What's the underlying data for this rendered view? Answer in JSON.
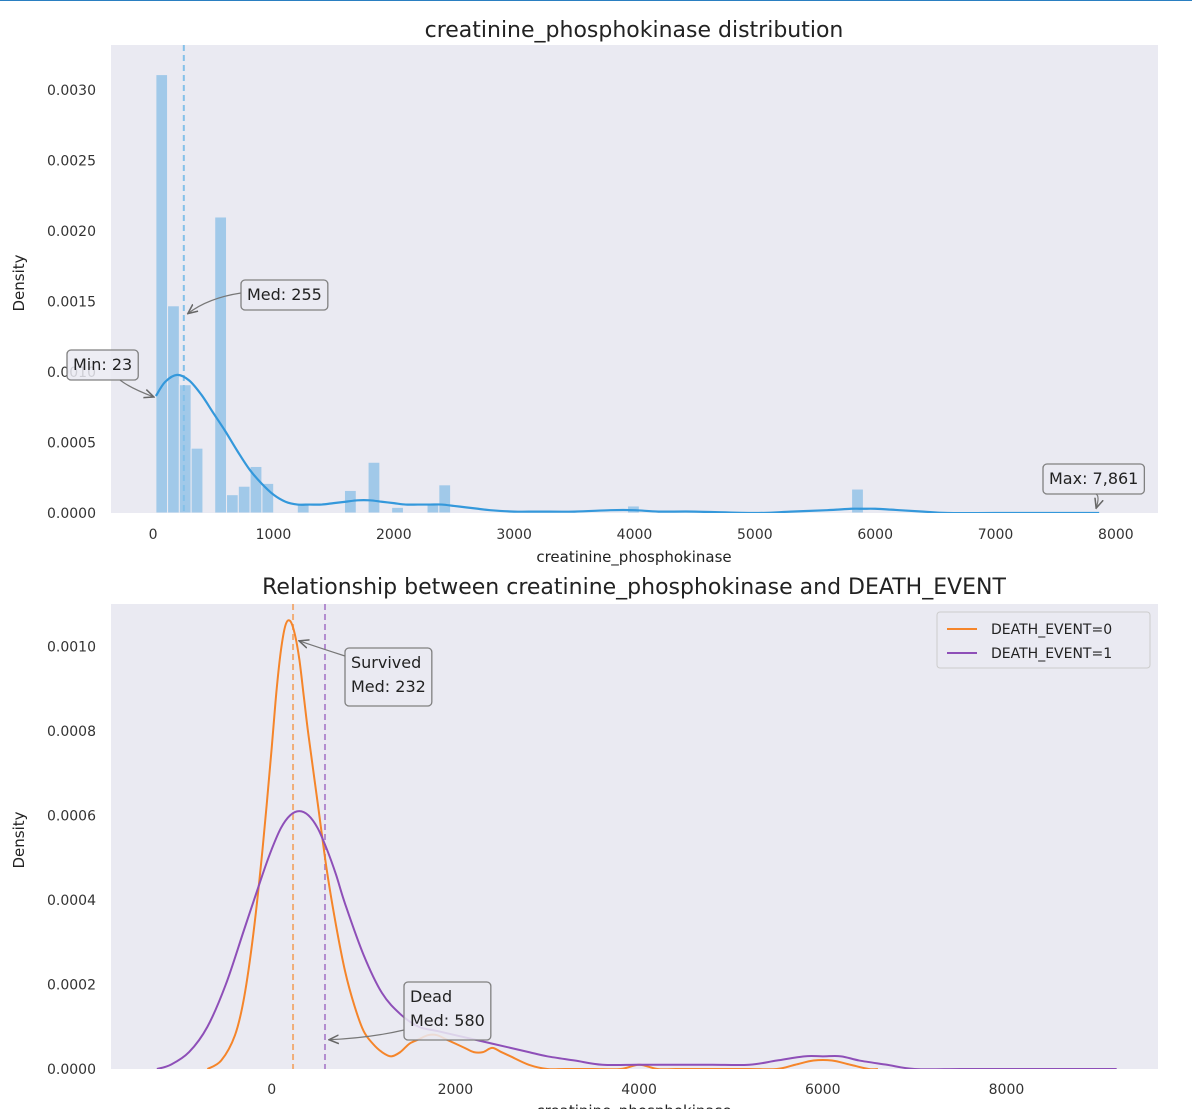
{
  "chart_data": [
    {
      "type": "histogram",
      "title": "creatinine_phosphokinase distribution",
      "xlabel": "creatinine_phosphokinase",
      "ylabel": "Density",
      "xlim": [
        -350,
        8350
      ],
      "ylim": [
        0,
        0.00332
      ],
      "xticks": [
        0,
        1000,
        2000,
        3000,
        4000,
        5000,
        6000,
        7000,
        8000
      ],
      "yticks": [
        0.0,
        0.0005,
        0.001,
        0.0015,
        0.002,
        0.0025,
        0.003
      ],
      "ytick_labels": [
        "0.0000",
        "0.0005",
        "0.0010",
        "0.0015",
        "0.0020",
        "0.0025",
        "0.0030"
      ],
      "grid": false,
      "color": "#3498db",
      "bins": [
        {
          "x0": 23,
          "x1": 120,
          "density": 0.00311
        },
        {
          "x0": 120,
          "x1": 218,
          "density": 0.00147
        },
        {
          "x0": 218,
          "x1": 316,
          "density": 0.00091
        },
        {
          "x0": 316,
          "x1": 414,
          "density": 0.00046
        },
        {
          "x0": 414,
          "x1": 512,
          "density": 0.0
        },
        {
          "x0": 512,
          "x1": 610,
          "density": 0.0021
        },
        {
          "x0": 610,
          "x1": 708,
          "density": 0.00013
        },
        {
          "x0": 708,
          "x1": 806,
          "density": 0.00019
        },
        {
          "x0": 806,
          "x1": 904,
          "density": 0.00033
        },
        {
          "x0": 904,
          "x1": 1002,
          "density": 0.00021
        },
        {
          "x0": 1198,
          "x1": 1296,
          "density": 6e-05
        },
        {
          "x0": 1590,
          "x1": 1688,
          "density": 0.00016
        },
        {
          "x0": 1786,
          "x1": 1884,
          "density": 0.00036
        },
        {
          "x0": 1982,
          "x1": 2080,
          "density": 4e-05
        },
        {
          "x0": 2276,
          "x1": 2374,
          "density": 6e-05
        },
        {
          "x0": 2374,
          "x1": 2472,
          "density": 0.0002
        },
        {
          "x0": 3942,
          "x1": 4040,
          "density": 5e-05
        },
        {
          "x0": 5804,
          "x1": 5902,
          "density": 0.00017
        }
      ],
      "kde": {
        "x": [
          23,
          100,
          200,
          300,
          400,
          500,
          600,
          700,
          800,
          900,
          1000,
          1100,
          1200,
          1300,
          1400,
          1500,
          1600,
          1700,
          1800,
          1900,
          2000,
          2100,
          2200,
          2300,
          2400,
          2500,
          2600,
          2700,
          2800,
          3000,
          3200,
          3500,
          3800,
          4000,
          4200,
          4500,
          5000,
          5300,
          5600,
          5800,
          5900,
          6000,
          6200,
          6400,
          6600,
          7000,
          7500,
          7861
        ],
        "y": [
          0.00083,
          0.00093,
          0.00098,
          0.00094,
          0.00084,
          0.00071,
          0.00058,
          0.00044,
          0.00031,
          0.00021,
          0.00013,
          8e-05,
          6e-05,
          6e-05,
          6e-05,
          7e-05,
          8e-05,
          9e-05,
          9e-05,
          8e-05,
          7e-05,
          6e-05,
          6e-05,
          6e-05,
          6e-05,
          5e-05,
          4e-05,
          3e-05,
          2e-05,
          1e-05,
          1e-05,
          1e-05,
          2e-05,
          2e-05,
          1e-05,
          1e-05,
          0.0,
          1e-05,
          2e-05,
          3e-05,
          3e-05,
          3e-05,
          2e-05,
          1e-05,
          0.0,
          0.0,
          0.0,
          0.0
        ]
      },
      "median_line": {
        "x": 255,
        "color": "#85c1e9"
      },
      "annotations": [
        {
          "text": "Med: 255",
          "target_x": 255,
          "target_y": 0.0014
        },
        {
          "text": "Min: 23",
          "target_x": 23,
          "target_y": 0.00083
        },
        {
          "text": "Max: 7,861",
          "target_x": 7861,
          "target_y": 2e-05
        }
      ]
    },
    {
      "type": "line",
      "title": "Relationship between creatinine_phosphokinase and DEATH_EVENT",
      "xlabel": "creatinine_phosphokinase",
      "ylabel": "Density",
      "xlim": [
        -1750,
        9650
      ],
      "ylim": [
        0,
        0.0011
      ],
      "xticks": [
        0,
        2000,
        4000,
        6000,
        8000
      ],
      "yticks": [
        0.0,
        0.0002,
        0.0004,
        0.0006,
        0.0008,
        0.001
      ],
      "ytick_labels": [
        "0.0000",
        "0.0002",
        "0.0004",
        "0.0006",
        "0.0008",
        "0.0010"
      ],
      "grid": false,
      "legend": "top-right",
      "series": [
        {
          "name": "DEATH_EVENT=0",
          "color": "#f5852a",
          "median": 232,
          "x": [
            -700,
            -550,
            -400,
            -300,
            -200,
            -100,
            0,
            50,
            100,
            150,
            200,
            250,
            300,
            350,
            400,
            500,
            600,
            700,
            800,
            900,
            1000,
            1100,
            1200,
            1300,
            1400,
            1500,
            1600,
            1700,
            1800,
            1900,
            2000,
            2100,
            2200,
            2300,
            2400,
            2500,
            2600,
            2800,
            3000,
            3200,
            3500,
            3800,
            4000,
            4200,
            4400,
            4800,
            5200,
            5500,
            5700,
            5900,
            6100,
            6300,
            6500,
            6600
          ],
          "y": [
            0.0,
            2e-05,
            8e-05,
            0.00017,
            0.00032,
            0.00052,
            0.00076,
            0.00089,
            0.00099,
            0.00105,
            0.00106,
            0.00103,
            0.00097,
            0.00088,
            0.00079,
            0.00063,
            0.00047,
            0.00034,
            0.00023,
            0.00015,
            9e-05,
            6e-05,
            4e-05,
            3e-05,
            4e-05,
            6e-05,
            7e-05,
            8e-05,
            8e-05,
            7e-05,
            6e-05,
            5e-05,
            4e-05,
            4e-05,
            5e-05,
            4e-05,
            3e-05,
            1e-05,
            0.0,
            0.0,
            0.0,
            0.0,
            1e-05,
            0.0,
            0.0,
            0.0,
            0.0,
            0.0,
            1e-05,
            2e-05,
            2e-05,
            1e-05,
            0.0,
            0.0
          ]
        },
        {
          "name": "DEATH_EVENT=1",
          "color": "#8e4fb8",
          "median": 580,
          "x": [
            -1250,
            -1100,
            -900,
            -700,
            -500,
            -300,
            -100,
            0,
            100,
            200,
            300,
            400,
            500,
            600,
            700,
            800,
            1000,
            1200,
            1400,
            1600,
            1800,
            2000,
            2200,
            2400,
            2600,
            2800,
            3000,
            3300,
            3600,
            4000,
            4400,
            4800,
            5200,
            5500,
            5800,
            6000,
            6200,
            6400,
            6700,
            7000,
            7500,
            8000,
            8500,
            9000,
            9200
          ],
          "y": [
            0.0,
            1e-05,
            4e-05,
            0.0001,
            0.0002,
            0.00033,
            0.00046,
            0.00052,
            0.00057,
            0.0006,
            0.00061,
            0.0006,
            0.00057,
            0.00052,
            0.00046,
            0.00039,
            0.00027,
            0.00018,
            0.00013,
            0.0001,
            9e-05,
            8e-05,
            7e-05,
            6e-05,
            5e-05,
            4e-05,
            3e-05,
            2e-05,
            1e-05,
            1e-05,
            1e-05,
            1e-05,
            1e-05,
            2e-05,
            3e-05,
            3e-05,
            3e-05,
            2e-05,
            1e-05,
            0.0,
            0.0,
            0.0,
            0.0,
            0.0,
            0.0
          ]
        }
      ],
      "annotations": [
        {
          "lines": [
            "Survived",
            "Med: 232"
          ],
          "target_x": 232,
          "target_y": 0.00102
        },
        {
          "lines": [
            "Dead",
            "Med: 580"
          ],
          "target_x": 580,
          "target_y": 0.0001
        }
      ]
    }
  ]
}
